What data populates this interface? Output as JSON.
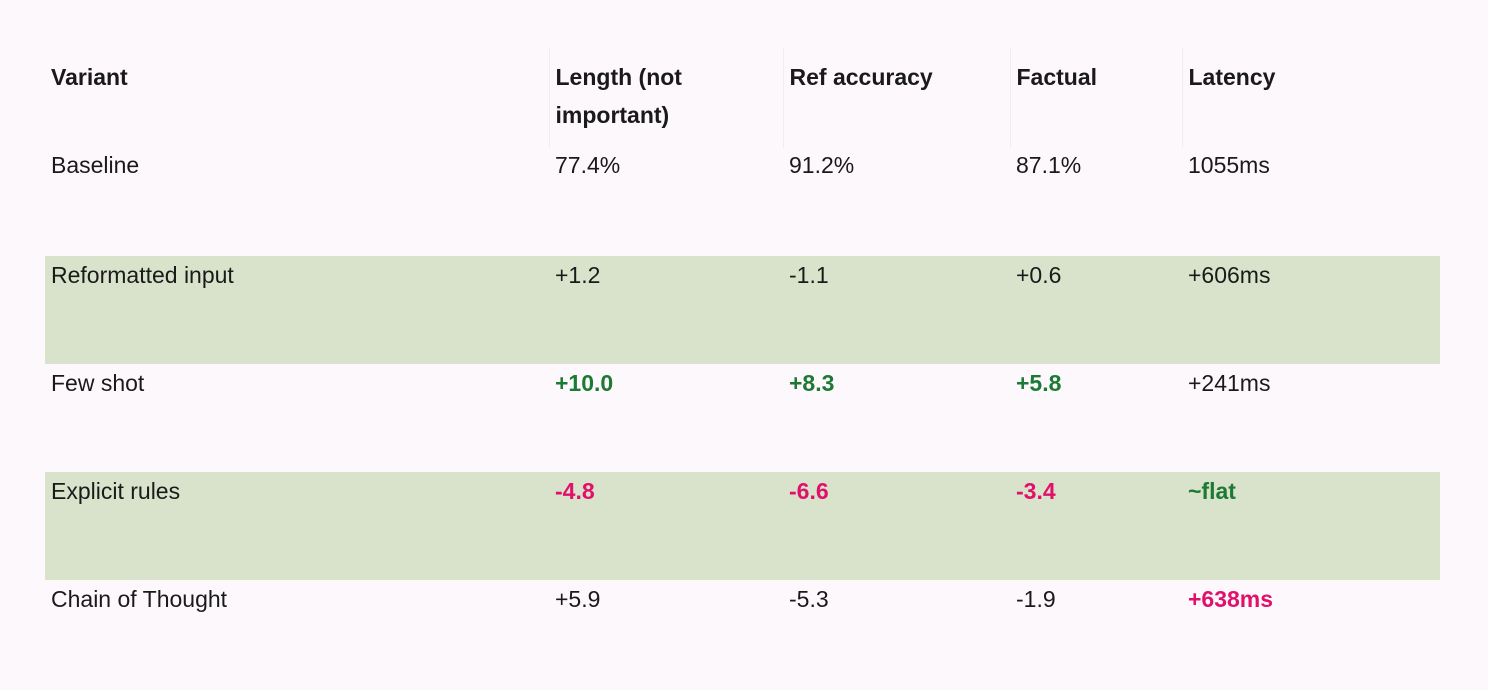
{
  "table": {
    "headers": [
      "Variant",
      "Length (not important)",
      "Ref accuracy",
      "Factual",
      "Latency"
    ],
    "rows": [
      {
        "shaded": false,
        "cells": [
          {
            "text": "Baseline",
            "style": "plain"
          },
          {
            "text": "77.4%",
            "style": "plain"
          },
          {
            "text": "91.2%",
            "style": "plain"
          },
          {
            "text": "87.1%",
            "style": "plain"
          },
          {
            "text": "1055ms",
            "style": "plain"
          }
        ]
      },
      {
        "shaded": true,
        "cells": [
          {
            "text": "Reformatted input",
            "style": "plain"
          },
          {
            "text": "+1.2",
            "style": "plain"
          },
          {
            "text": "-1.1",
            "style": "plain"
          },
          {
            "text": "+0.6",
            "style": "plain"
          },
          {
            "text": "+606ms",
            "style": "plain"
          }
        ]
      },
      {
        "shaded": false,
        "cells": [
          {
            "text": "Few shot",
            "style": "plain"
          },
          {
            "text": "+10.0",
            "style": "pos"
          },
          {
            "text": "+8.3",
            "style": "pos"
          },
          {
            "text": "+5.8",
            "style": "pos"
          },
          {
            "text": "+241ms",
            "style": "plain"
          }
        ]
      },
      {
        "shaded": true,
        "cells": [
          {
            "text": "Explicit rules",
            "style": "plain"
          },
          {
            "text": "-4.8",
            "style": "neg"
          },
          {
            "text": "-6.6",
            "style": "neg"
          },
          {
            "text": "-3.4",
            "style": "neg"
          },
          {
            "text": "~flat",
            "style": "pos"
          }
        ]
      },
      {
        "shaded": false,
        "cells": [
          {
            "text": "Chain of Thought",
            "style": "plain"
          },
          {
            "text": "+5.9",
            "style": "plain"
          },
          {
            "text": "-5.3",
            "style": "plain"
          },
          {
            "text": "-1.9",
            "style": "plain"
          },
          {
            "text": "+638ms",
            "style": "neg"
          }
        ]
      }
    ]
  },
  "colors": {
    "background": "#fdf8fc",
    "shaded_row": "#d9e3cb",
    "positive": "#1c7a35",
    "negative": "#e0106b",
    "text": "#1a1a1a"
  }
}
